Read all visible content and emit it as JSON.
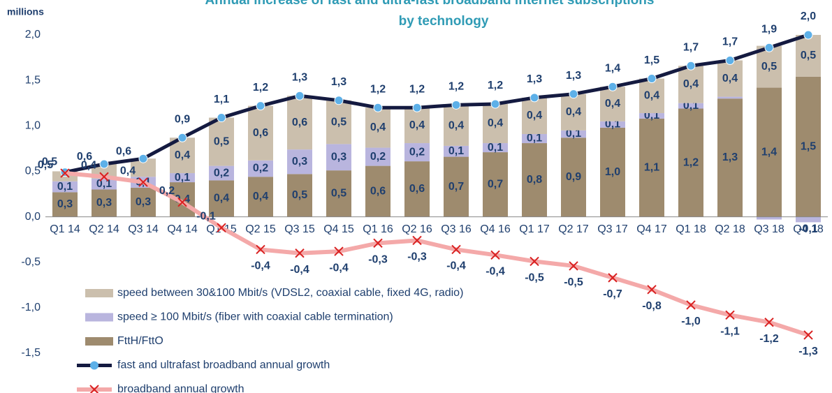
{
  "chart_data": {
    "type": "bar",
    "title": [
      "Annual increase of fast and ultra-fast broadband internet subscriptions",
      "by technology"
    ],
    "y_unit": "millions",
    "categories": [
      "Q1 14",
      "Q2 14",
      "Q3 14",
      "Q4 14",
      "Q1 15",
      "Q2 15",
      "Q3 15",
      "Q4 15",
      "Q1 16",
      "Q2 16",
      "Q3 16",
      "Q4 16",
      "Q1 17",
      "Q2 17",
      "Q3 17",
      "Q4 17",
      "Q1 18",
      "Q2 18",
      "Q3 18",
      "Q4 18"
    ],
    "ylim": [
      -1.5,
      2.0
    ],
    "yticks": [
      {
        "value": -1.5,
        "label": "-1,5"
      },
      {
        "value": -1,
        "label": "-1,0"
      },
      {
        "value": -0.5,
        "label": "-0,5"
      },
      {
        "value": 0,
        "label": "0,0"
      },
      {
        "value": 0.5,
        "label": "0,5"
      },
      {
        "value": 1,
        "label": "1,0"
      },
      {
        "value": 1.5,
        "label": "1,5"
      },
      {
        "value": 2,
        "label": "2,0"
      }
    ],
    "grid": false,
    "series": [
      {
        "name": "FttH/FttO",
        "type": "bar",
        "color": "#9e8b6e",
        "values": [
          0.27,
          0.3,
          0.32,
          0.38,
          0.4,
          0.44,
          0.47,
          0.51,
          0.56,
          0.61,
          0.66,
          0.71,
          0.81,
          0.87,
          0.98,
          1.08,
          1.19,
          1.3,
          1.42,
          1.54
        ],
        "value_labels": [
          "0,3",
          "0,3",
          "0,3",
          "0,4",
          "0,4",
          "0,4",
          "0,5",
          "0,5",
          "0,6",
          "0,6",
          "0,7",
          "0,7",
          "0,8",
          "0,9",
          "1,0",
          "1,1",
          "1,2",
          "1,3",
          "1,4",
          "1,5"
        ]
      },
      {
        "name": "speed ≥ 100 Mbit/s (fiber with coaxial cable termination)",
        "type": "bar",
        "color": "#b9b5de",
        "values": [
          0.12,
          0.12,
          0.12,
          0.1,
          0.16,
          0.18,
          0.27,
          0.29,
          0.2,
          0.2,
          0.12,
          0.1,
          0.1,
          0.08,
          0.07,
          0.06,
          0.06,
          0.02,
          -0.03,
          -0.06
        ],
        "value_labels": [
          "0,1",
          "0,1",
          "0,1",
          "0,1",
          "0,2",
          "0,2",
          "0,3",
          "0,3",
          "0,2",
          "0,2",
          "0,1",
          "0,1",
          "0,1",
          "0,1",
          "0,1",
          "0,1",
          "0,1",
          null,
          null,
          "-0,1"
        ]
      },
      {
        "name": "speed between 30&100 Mbit/s (VDSL2, coaxial cable, fixed 4G, radio)",
        "type": "bar",
        "color": "#cbbfad",
        "values": [
          0.11,
          0.16,
          0.2,
          0.39,
          0.53,
          0.6,
          0.59,
          0.48,
          0.44,
          0.39,
          0.44,
          0.43,
          0.4,
          0.4,
          0.38,
          0.38,
          0.41,
          0.4,
          0.46,
          0.46
        ],
        "value_labels": [
          null,
          null,
          null,
          "0,4",
          "0,5",
          "0,6",
          "0,6",
          "0,5",
          "0,4",
          "0,4",
          "0,4",
          "0,4",
          "0,4",
          "0,4",
          "0,4",
          "0,4",
          "0,4",
          "0,4",
          "0,5",
          "0,5"
        ]
      },
      {
        "name": "fast and ultrafast broadband annual growth",
        "type": "line",
        "color": "#141a40",
        "marker_color": "#5db0e8",
        "values": [
          0.49,
          0.58,
          0.64,
          0.87,
          1.09,
          1.22,
          1.33,
          1.28,
          1.2,
          1.2,
          1.23,
          1.24,
          1.31,
          1.35,
          1.43,
          1.52,
          1.66,
          1.72,
          1.86,
          2.0
        ],
        "value_labels": [
          "0,5",
          "0,6",
          "0,6",
          "0,9",
          "1,1",
          "1,2",
          "1,3",
          "1,3",
          "1,2",
          "1,2",
          "1,2",
          "1,2",
          "1,3",
          "1,3",
          "1,4",
          "1,5",
          "1,7",
          "1,7",
          "1,9",
          "2,0"
        ]
      },
      {
        "name": "broadband annual growth",
        "type": "line",
        "color": "#f4a9a9",
        "marker_color": "#d92020",
        "values": [
          0.48,
          0.44,
          0.38,
          0.16,
          -0.12,
          -0.36,
          -0.4,
          -0.38,
          -0.29,
          -0.26,
          -0.36,
          -0.42,
          -0.49,
          -0.54,
          -0.67,
          -0.8,
          -0.97,
          -1.08,
          -1.16,
          -1.3
        ],
        "value_labels": [
          "0,5",
          "0,4",
          "0,4",
          "0,2",
          "-0,1",
          "-0,4",
          "-0,4",
          "-0,4",
          "-0,3",
          "-0,3",
          "-0,4",
          "-0,4",
          "-0,5",
          "-0,5",
          "-0,7",
          "-0,8",
          "-1,0",
          "-1,1",
          "-1,2",
          "-1,3"
        ]
      }
    ]
  }
}
